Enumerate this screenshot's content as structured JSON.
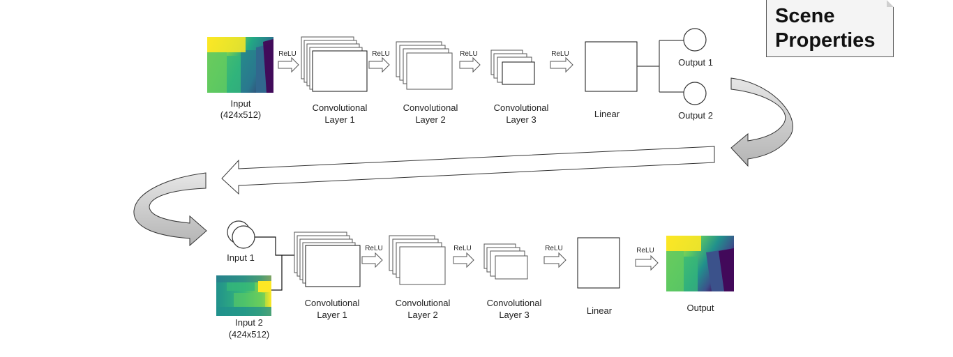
{
  "scene_properties": {
    "line1": "Scene",
    "line2": "Properties"
  },
  "top_row": {
    "input_label": "Input",
    "input_size": "(424x512)",
    "relu": [
      "ReLU",
      "ReLU",
      "ReLU",
      "ReLU"
    ],
    "conv1": [
      "Convolutional",
      "Layer 1"
    ],
    "conv2": [
      "Convolutional",
      "Layer 2"
    ],
    "conv3": [
      "Convolutional",
      "Layer 3"
    ],
    "linear": "Linear",
    "output1": "Output 1",
    "output2": "Output 2"
  },
  "bottom_row": {
    "input1_label": "Input 1",
    "input2_label": "Input 2",
    "input2_size": "(424x512)",
    "relu": [
      "ReLU",
      "ReLU",
      "ReLU",
      "ReLU"
    ],
    "conv1": [
      "Convolutional",
      "Layer 1"
    ],
    "conv2": [
      "Convolutional",
      "Layer 2"
    ],
    "conv3": [
      "Convolutional",
      "Layer 3"
    ],
    "linear": "Linear",
    "output": "Output"
  },
  "colors": {
    "viridis_yellow": "#fde725",
    "viridis_green": "#5ec962",
    "viridis_teal": "#21918c",
    "viridis_blue": "#3b528b",
    "viridis_purple": "#440154",
    "flow_arrow_gray": "#c8c8c8"
  }
}
